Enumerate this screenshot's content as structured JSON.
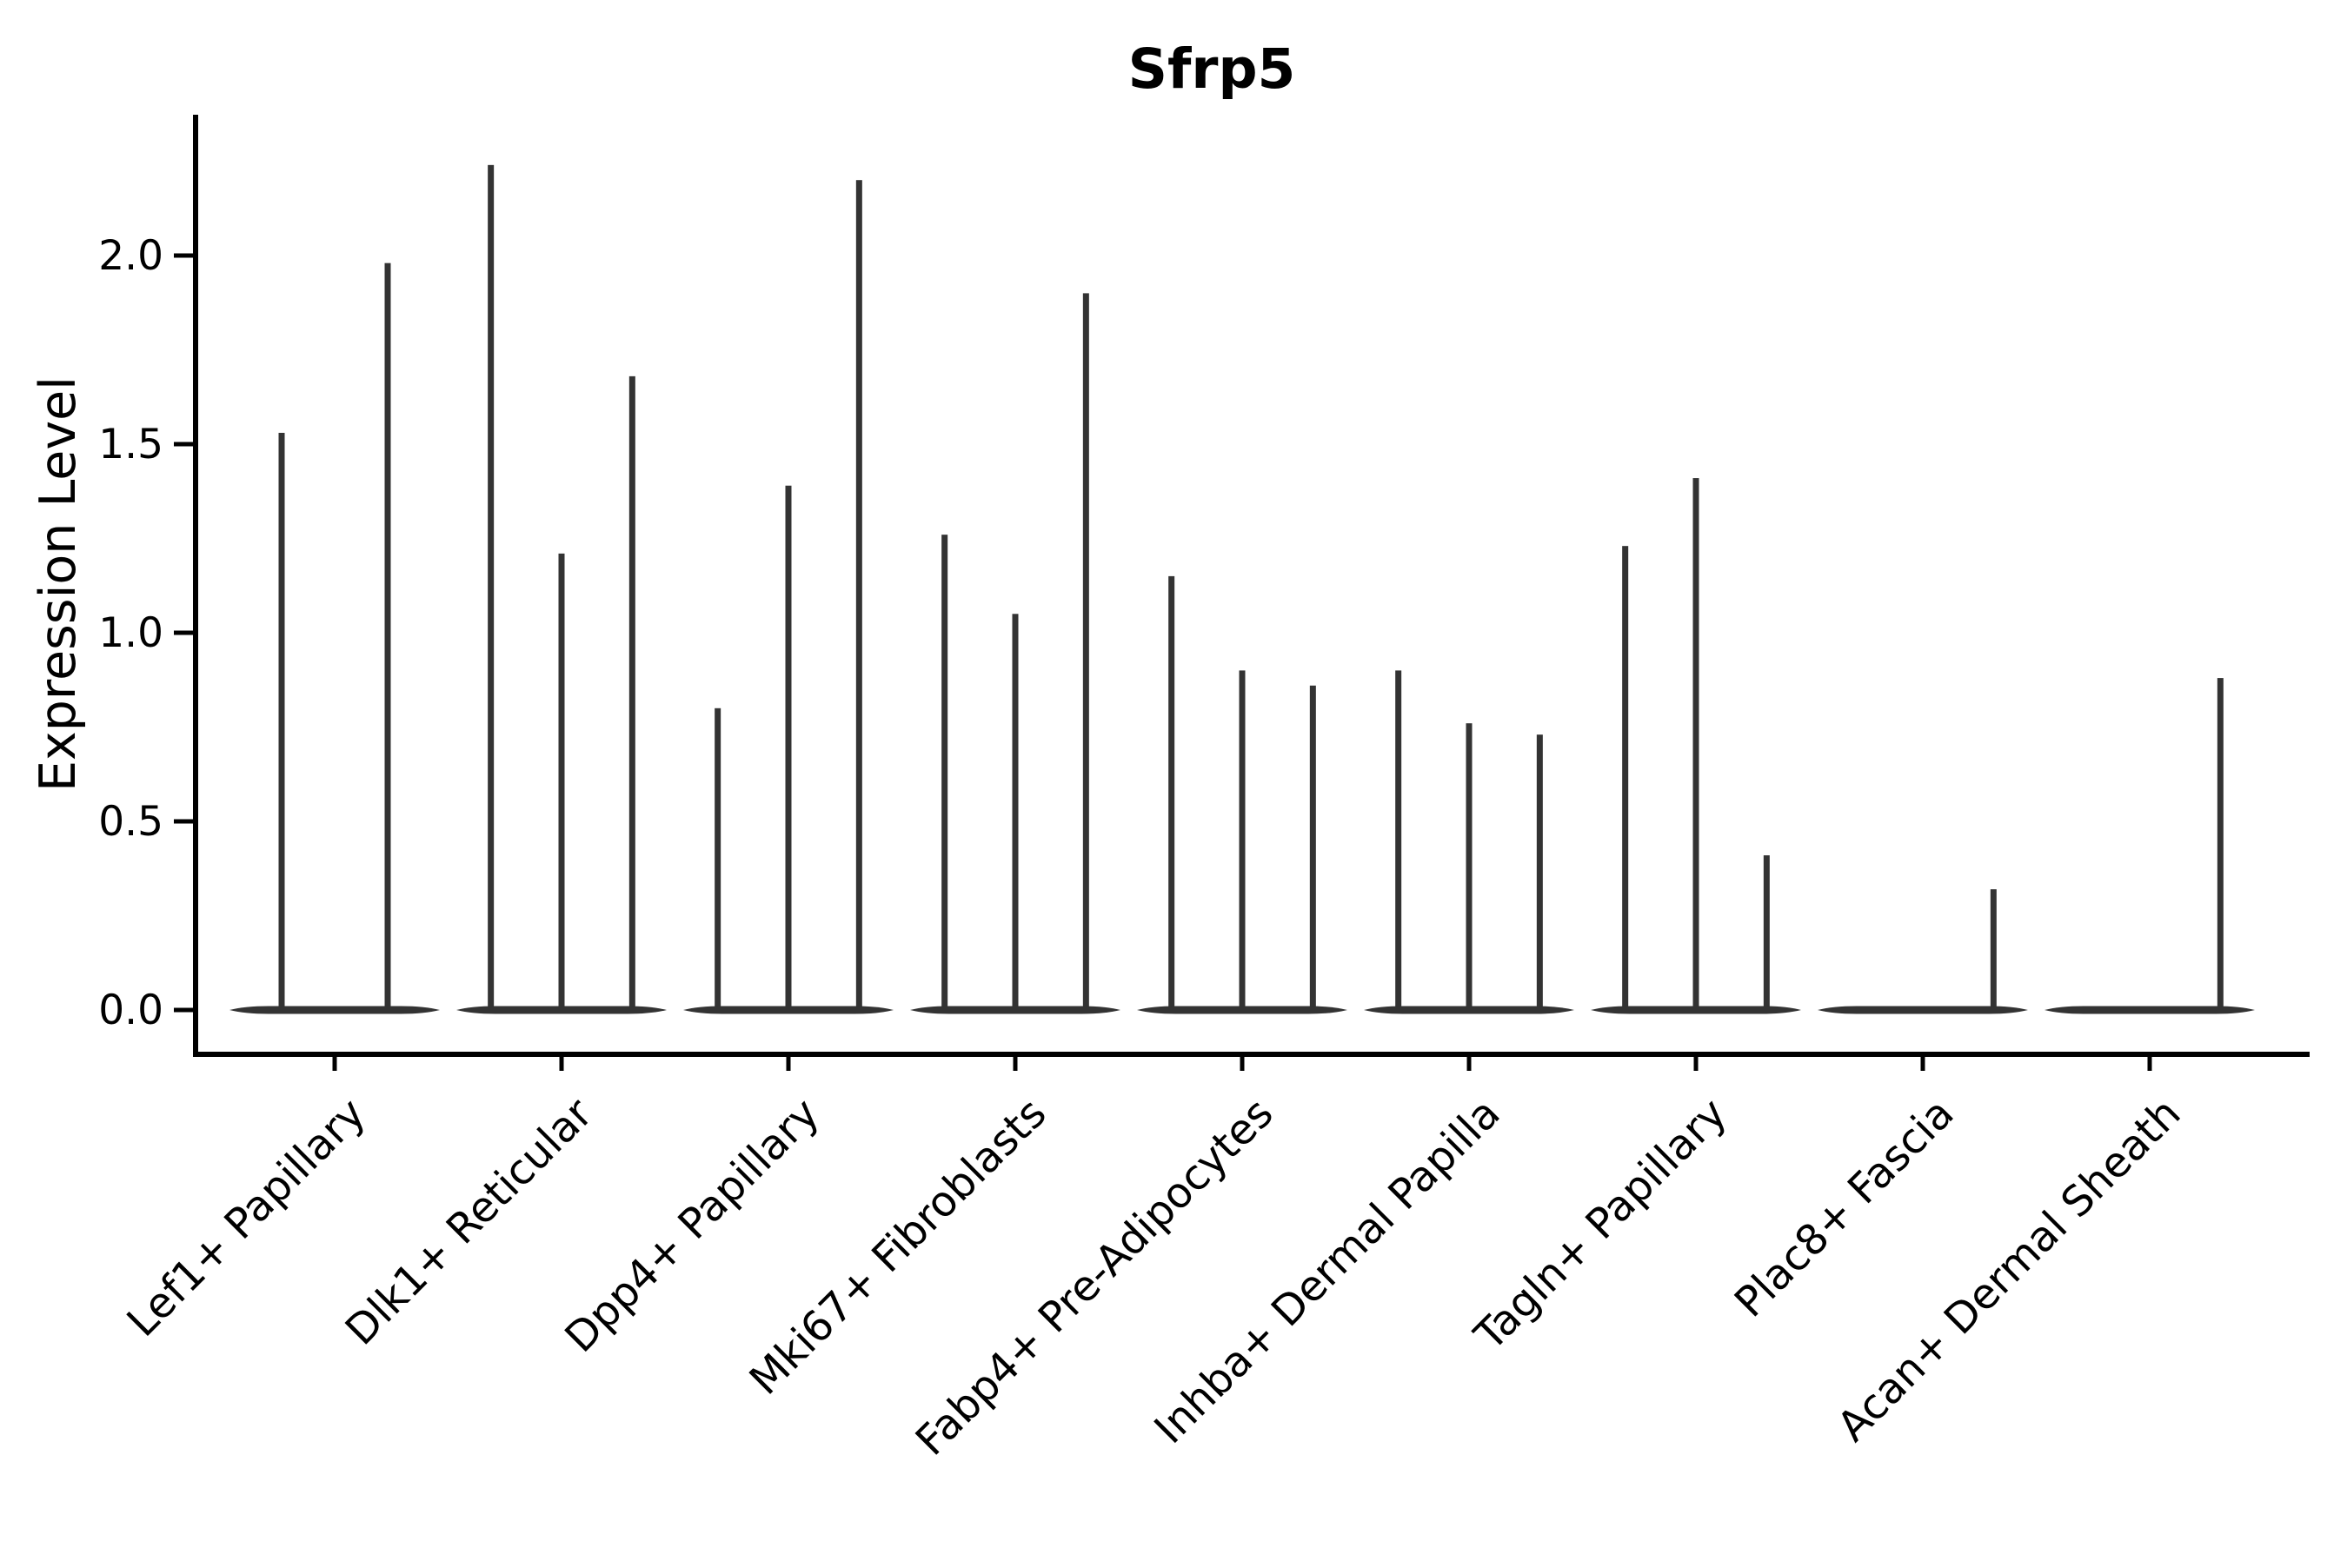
{
  "chart_data": {
    "type": "violin",
    "title": "Sfrp5",
    "xlabel": "",
    "ylabel": "Expression Level",
    "ylim": [
      -0.11,
      2.36
    ],
    "ytick_labels": [
      "0.0",
      "0.5",
      "1.0",
      "1.5",
      "2.0"
    ],
    "ytick_values": [
      0.0,
      0.5,
      1.0,
      1.5,
      2.0
    ],
    "grid": false,
    "legend": "none",
    "violin_color": "#333333",
    "axis_color": "#000000",
    "categories": [
      "Lef1+ Papillary",
      "Dlk1+ Reticular",
      "Dpp4+ Papillary",
      "Mki67+ Fibroblasts",
      "Fabp4+ Pre-Adipocytes",
      "Inhba+ Dermal Papilla",
      "Tagln+ Papillary",
      "Plac8+ Fascia",
      "Acan+ Dermal Sheath"
    ],
    "groups": [
      {
        "category": "Lef1+ Papillary",
        "violin_max_expression": [
          1.53,
          1.98
        ]
      },
      {
        "category": "Dlk1+ Reticular",
        "violin_max_expression": [
          2.24,
          1.21,
          1.68
        ]
      },
      {
        "category": "Dpp4+ Papillary",
        "violin_max_expression": [
          0.8,
          1.39,
          2.2
        ]
      },
      {
        "category": "Mki67+ Fibroblasts",
        "violin_max_expression": [
          1.26,
          1.05,
          1.9
        ]
      },
      {
        "category": "Fabp4+ Pre-Adipocytes",
        "violin_max_expression": [
          1.15,
          0.9,
          0.86
        ]
      },
      {
        "category": "Inhba+ Dermal Papilla",
        "violin_max_expression": [
          0.9,
          0.76,
          0.73
        ]
      },
      {
        "category": "Tagln+ Papillary",
        "violin_max_expression": [
          1.23,
          1.41,
          0.41
        ]
      },
      {
        "category": "Plac8+ Fascia",
        "violin_max_expression": [
          0.0,
          0.0,
          0.32
        ]
      },
      {
        "category": "Acan+ Dermal Sheath",
        "violin_max_expression": [
          0.0,
          0.0,
          0.88
        ]
      }
    ]
  }
}
